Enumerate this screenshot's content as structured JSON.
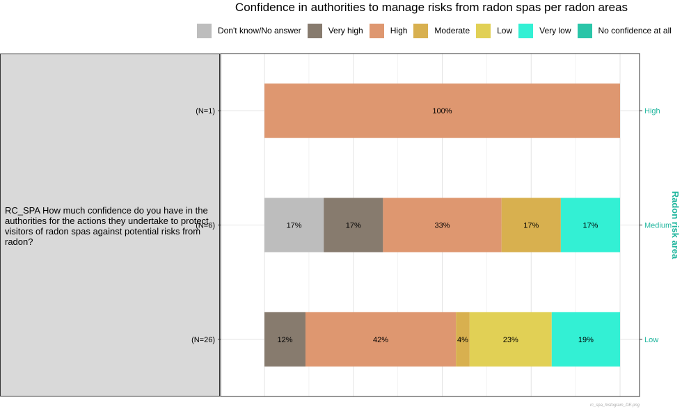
{
  "title": "Confidence in authorities to manage risks from radon spas per radon areas",
  "facet_label": "RC_SPA How much confidence do you have in the authorities for the actions they undertake to protect visitors of radon spas against potential risks from radon?",
  "right_axis_title": "Radon risk area",
  "footer": "rc_spa_histogram_DE.png",
  "colors": {
    "Don't know/No answer": "#bdbdbd",
    "Very high": "#877b6e",
    "High": "#de9770",
    "Moderate": "#d8b04f",
    "Low": "#e1d055",
    "Very low": "#33f0d4",
    "No confidence at all": "#2ac5a8",
    "axis_right": "#20b69e"
  },
  "chart_data": {
    "type": "bar",
    "orientation": "horizontal",
    "stacked": true,
    "percent": true,
    "title": "Confidence in authorities to manage risks from radon spas per radon areas",
    "legend": [
      "Don't know/No answer",
      "Very high",
      "High",
      "Moderate",
      "Low",
      "Very low",
      "No confidence at all"
    ],
    "legend_position": "top",
    "right_axis_title": "Radon risk area",
    "grid": true,
    "xlim": [
      0,
      100
    ],
    "categories": [
      {
        "left_label": "(N=1)",
        "right_label": "High",
        "segments": [
          {
            "name": "High",
            "value": 100,
            "label": "100%"
          }
        ]
      },
      {
        "left_label": "(N=6)",
        "right_label": "Medium",
        "segments": [
          {
            "name": "Don't know/No answer",
            "value": 16.67,
            "label": "17%"
          },
          {
            "name": "Very high",
            "value": 16.67,
            "label": "17%"
          },
          {
            "name": "High",
            "value": 33.33,
            "label": "33%"
          },
          {
            "name": "Moderate",
            "value": 16.67,
            "label": "17%"
          },
          {
            "name": "Very low",
            "value": 16.67,
            "label": "17%"
          }
        ]
      },
      {
        "left_label": "(N=26)",
        "right_label": "Low",
        "segments": [
          {
            "name": "Very high",
            "value": 11.54,
            "label": "12%"
          },
          {
            "name": "High",
            "value": 42.31,
            "label": "42%"
          },
          {
            "name": "Moderate",
            "value": 3.85,
            "label": "4%"
          },
          {
            "name": "Low",
            "value": 23.08,
            "label": "23%"
          },
          {
            "name": "Very low",
            "value": 19.23,
            "label": "19%"
          }
        ]
      }
    ]
  }
}
